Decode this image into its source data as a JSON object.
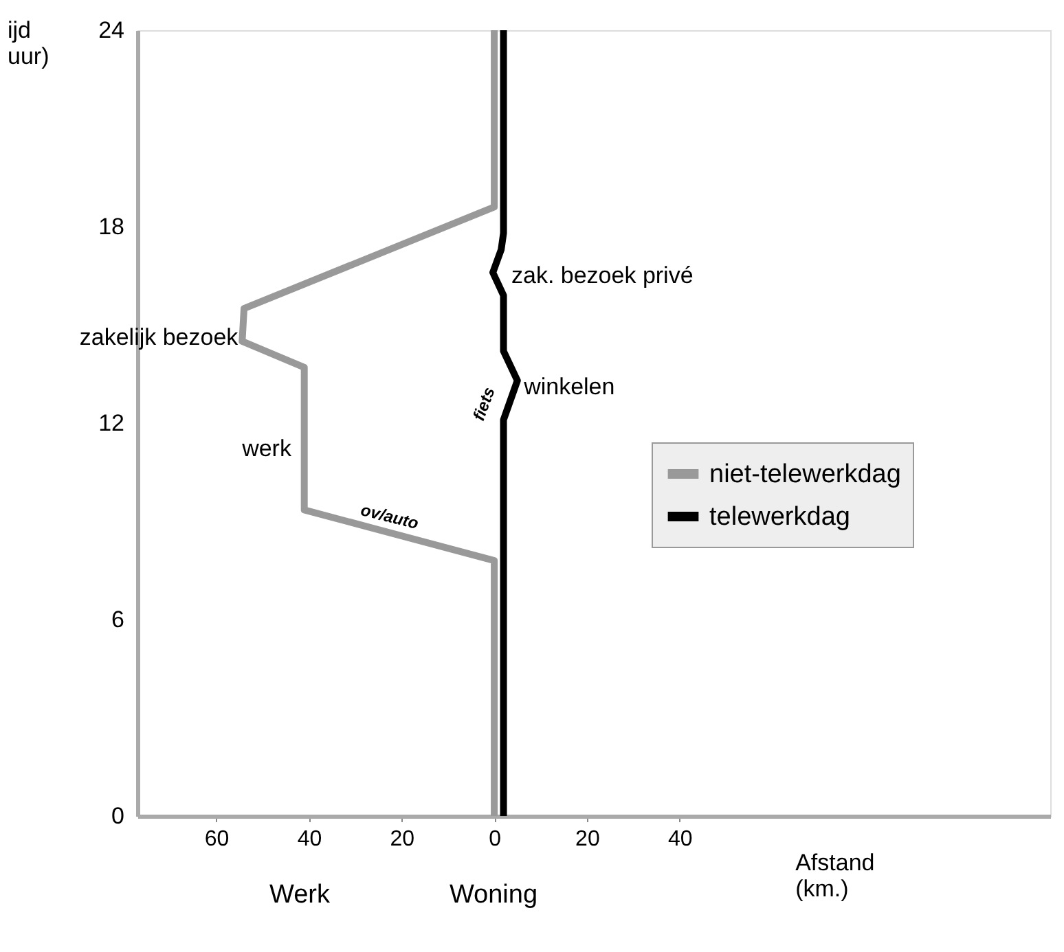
{
  "chart_data": {
    "type": "line",
    "xlabel": "Afstand (km.)",
    "ylabel": "ijd uur)",
    "xlim": [
      -77,
      120
    ],
    "ylim": [
      0,
      24
    ],
    "xticks": [
      {
        "value": -60,
        "label": "60"
      },
      {
        "value": -40,
        "label": "40"
      },
      {
        "value": -20,
        "label": "20"
      },
      0,
      20,
      40
    ],
    "yticks": [
      0,
      6,
      12,
      18,
      24
    ],
    "grid": false,
    "legend": "right",
    "marker": "none",
    "line_style": "solid",
    "series": [
      {
        "name": "niet-telewerkdag",
        "color": "#999999",
        "x": [
          0,
          0,
          -41,
          -41,
          -54.4,
          -54,
          0,
          0
        ],
        "values": [
          0,
          7.8,
          9.35,
          13.7,
          14.5,
          15.5,
          18.6,
          24
        ]
      },
      {
        "name": "telewerkdag",
        "color": "#000000",
        "x": [
          2,
          2,
          5,
          2,
          2,
          -0.3,
          1.5,
          2,
          2
        ],
        "values": [
          0,
          12.1,
          13.3,
          14.2,
          15.9,
          16.6,
          17.3,
          17.8,
          24
        ]
      }
    ],
    "annotations": [
      {
        "text": "zakelijk bezoek",
        "x": -54.4,
        "y": 14.6
      },
      {
        "text": "werk",
        "x": -42,
        "y": 11.2
      },
      {
        "text": "ov/auto",
        "x": -23,
        "y": 8.9
      },
      "fiets",
      {
        "text": "winkelen",
        "x": 5.5,
        "y": 13.1
      },
      "zak. bezoek privé",
      "Werk",
      "Woning"
    ]
  }
}
